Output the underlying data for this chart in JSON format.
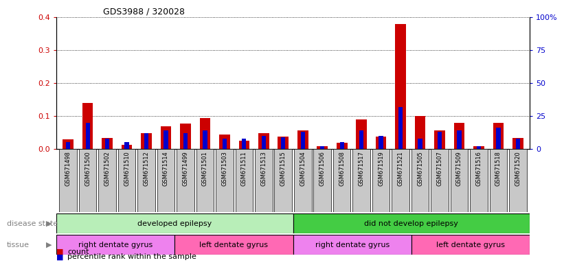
{
  "title": "GDS3988 / 320028",
  "samples": [
    "GSM671498",
    "GSM671500",
    "GSM671502",
    "GSM671510",
    "GSM671512",
    "GSM671514",
    "GSM671499",
    "GSM671501",
    "GSM671503",
    "GSM671511",
    "GSM671513",
    "GSM671515",
    "GSM671504",
    "GSM671506",
    "GSM671508",
    "GSM671517",
    "GSM671519",
    "GSM671521",
    "GSM671505",
    "GSM671507",
    "GSM671509",
    "GSM671516",
    "GSM671518",
    "GSM671520"
  ],
  "count": [
    0.03,
    0.14,
    0.033,
    0.012,
    0.047,
    0.068,
    0.078,
    0.093,
    0.043,
    0.025,
    0.048,
    0.038,
    0.057,
    0.008,
    0.018,
    0.09,
    0.038,
    0.38,
    0.1,
    0.057,
    0.08,
    0.008,
    0.08,
    0.033
  ],
  "percentile": [
    5,
    20,
    8,
    5,
    12,
    14,
    12,
    14,
    8,
    8,
    10,
    9,
    13,
    2,
    5,
    14,
    10,
    32,
    8,
    13,
    14,
    2,
    16,
    8
  ],
  "disease_state_groups": [
    {
      "label": "developed epilepsy",
      "start": 0,
      "end": 12,
      "color": "#B8EEB8"
    },
    {
      "label": "did not develop epilepsy",
      "start": 12,
      "end": 24,
      "color": "#44CC44"
    }
  ],
  "tissue_groups": [
    {
      "label": "right dentate gyrus",
      "start": 0,
      "end": 6,
      "color": "#EE82EE"
    },
    {
      "label": "left dentate gyrus",
      "start": 6,
      "end": 12,
      "color": "#FF69B4"
    },
    {
      "label": "right dentate gyrus",
      "start": 12,
      "end": 18,
      "color": "#EE82EE"
    },
    {
      "label": "left dentate gyrus",
      "start": 18,
      "end": 24,
      "color": "#FF69B4"
    }
  ],
  "ylim_left": [
    0,
    0.4
  ],
  "ylim_right": [
    0,
    100
  ],
  "yticks_left": [
    0.0,
    0.1,
    0.2,
    0.3,
    0.4
  ],
  "yticks_right": [
    0,
    25,
    50,
    75,
    100
  ],
  "ytick_labels_right": [
    "0",
    "25",
    "50",
    "75",
    "100%"
  ],
  "bar_color_count": "#CC0000",
  "bar_color_percentile": "#0000CC",
  "legend_count": "count",
  "legend_percentile": "percentile rank within the sample",
  "disease_state_label": "disease state",
  "tissue_label": "tissue"
}
